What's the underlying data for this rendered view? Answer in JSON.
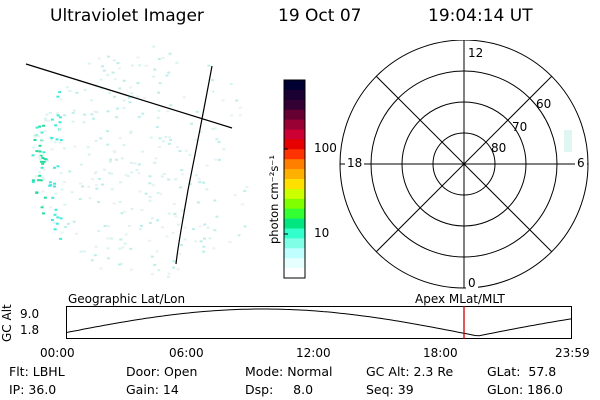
{
  "header": {
    "instrument": "Ultraviolet Imager",
    "date": "19 Oct 07",
    "time": "19:04:14 UT"
  },
  "colorbar": {
    "unit_label": "photon cm⁻²s⁻¹",
    "ticks": [
      "100",
      "10"
    ],
    "scale": "log",
    "colors": [
      "#000033",
      "#1a0033",
      "#330033",
      "#660033",
      "#990033",
      "#cc0033",
      "#e60000",
      "#ff3300",
      "#ff7f00",
      "#ffb000",
      "#ffe000",
      "#ccff00",
      "#80ff00",
      "#33ff33",
      "#00e680",
      "#33ffcc",
      "#80ffe6",
      "#c0ffff",
      "#e6ffff",
      "#ffffff"
    ]
  },
  "polar_plot": {
    "clock_labels": [
      "12",
      "18",
      "6",
      "0"
    ],
    "lat_labels": [
      "60",
      "70",
      "80"
    ]
  },
  "timeline": {
    "left_label": "Geographic Lat/Lon",
    "right_label": "Apex MLat/MLT",
    "y_axis_label": "GC Alt",
    "y_ticks": [
      "9.0",
      "1.8"
    ],
    "x_ticks": [
      "00:00",
      "06:00",
      "12:00",
      "18:00",
      "23:59"
    ],
    "marker_color": "#cc0000"
  },
  "info": {
    "row1": {
      "flt": "Flt: LBHL",
      "door": "Door: Open",
      "mode": "Mode: Normal",
      "gcalt": "GC Alt: 2.3 Re",
      "glat": "GLat:  57.8"
    },
    "row2": {
      "ip": "IP: 36.0",
      "gain": "Gain: 14",
      "dsp": "Dsp:     8.0",
      "seq": "Seq: 39",
      "glon": "GLon: 186.0"
    }
  }
}
